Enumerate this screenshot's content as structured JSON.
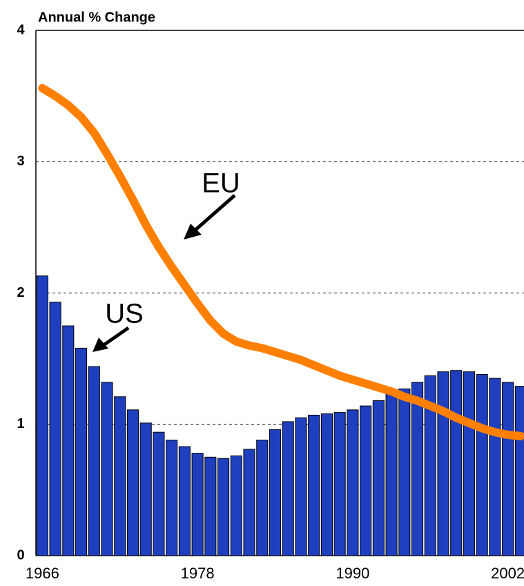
{
  "chart_data": {
    "type": "bar_line",
    "y_axis_label": "Annual % Change",
    "categories": [
      "1966",
      null,
      null,
      null,
      null,
      null,
      null,
      null,
      null,
      null,
      null,
      null,
      "1978",
      null,
      null,
      null,
      null,
      null,
      null,
      null,
      null,
      null,
      null,
      null,
      "1990",
      null,
      null,
      null,
      null,
      null,
      null,
      null,
      null,
      null,
      null,
      null,
      "2002",
      null
    ],
    "series": [
      {
        "name": "US",
        "type": "bar",
        "color": "#1f3fbf",
        "values": [
          2.13,
          1.93,
          1.75,
          1.58,
          1.44,
          1.32,
          1.21,
          1.11,
          1.01,
          0.94,
          0.88,
          0.83,
          0.78,
          0.75,
          0.74,
          0.76,
          0.81,
          0.88,
          0.96,
          1.02,
          1.05,
          1.07,
          1.08,
          1.09,
          1.11,
          1.14,
          1.18,
          1.23,
          1.27,
          1.32,
          1.37,
          1.4,
          1.41,
          1.4,
          1.38,
          1.35,
          1.32,
          1.29
        ]
      },
      {
        "name": "EU",
        "type": "line",
        "color": "#ff8000",
        "values": [
          3.56,
          3.5,
          3.43,
          3.34,
          3.22,
          3.06,
          2.89,
          2.71,
          2.52,
          2.35,
          2.2,
          2.06,
          1.92,
          1.79,
          1.69,
          1.63,
          1.6,
          1.58,
          1.55,
          1.52,
          1.49,
          1.45,
          1.41,
          1.37,
          1.34,
          1.31,
          1.28,
          1.25,
          1.21,
          1.18,
          1.14,
          1.1,
          1.05,
          1.01,
          0.97,
          0.94,
          0.92,
          0.91
        ]
      }
    ],
    "ylim": [
      0,
      4
    ],
    "yticks": [
      0,
      1,
      2,
      3,
      4
    ],
    "grid": true
  }
}
